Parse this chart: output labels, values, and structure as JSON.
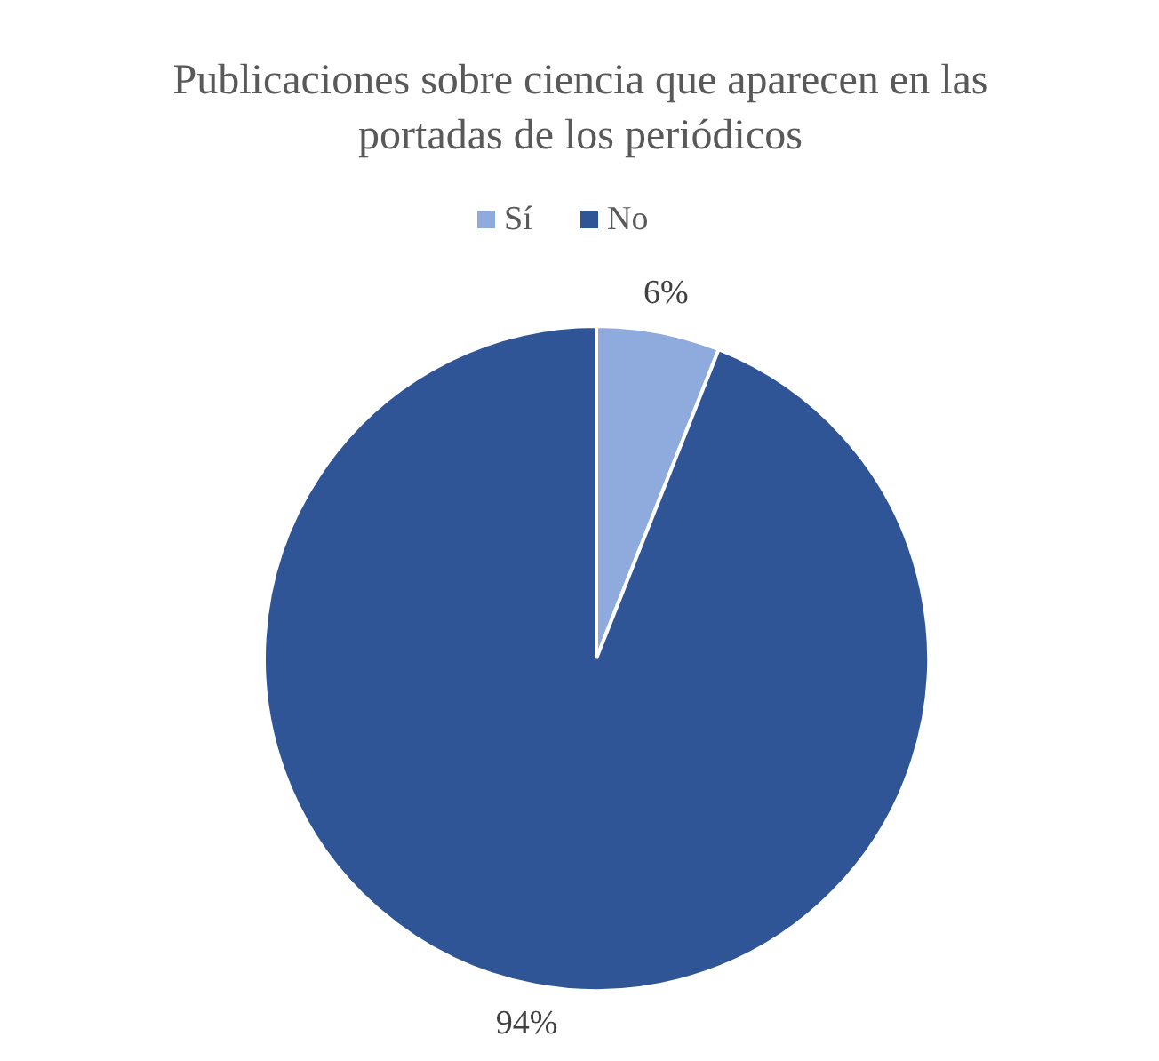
{
  "chart_data": {
    "type": "pie",
    "title": "Publicaciones sobre ciencia que aparecen en las portadas de los periódicos",
    "categories": [
      "Sí",
      "No"
    ],
    "values": [
      6,
      94
    ],
    "colors": [
      "#8faadc",
      "#2f5597"
    ],
    "value_labels": [
      "6%",
      "94%"
    ],
    "legend": "top"
  }
}
